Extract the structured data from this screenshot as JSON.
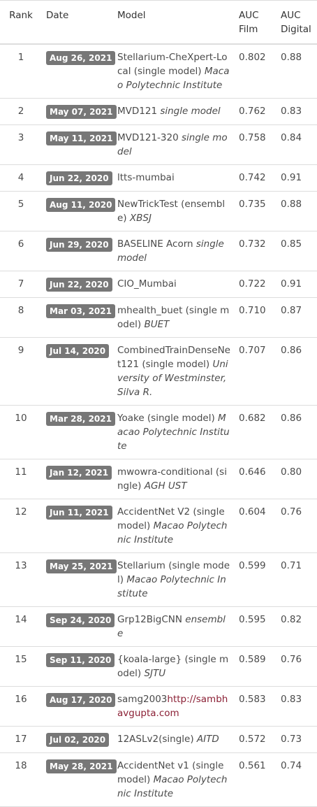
{
  "headers": {
    "rank": "Rank",
    "date": "Date",
    "model": "Model",
    "auc_film": "AUC Film",
    "auc_digital": "AUC Digital"
  },
  "rows": [
    {
      "rank": "1",
      "date": "Aug 26, 2021",
      "model": "Stellarium-CheXpert-Local (single model)",
      "org": "Macao Polytechnic Institute",
      "link": "",
      "film": "0.802",
      "digital": "0.88"
    },
    {
      "rank": "2",
      "date": "May 07, 2021",
      "model": "MVD121",
      "org": "single model",
      "link": "",
      "film": "0.762",
      "digital": "0.83"
    },
    {
      "rank": "3",
      "date": "May 11, 2021",
      "model": "MVD121-320",
      "org": "single model",
      "link": "",
      "film": "0.758",
      "digital": "0.84"
    },
    {
      "rank": "4",
      "date": "Jun 22, 2020",
      "model": "ltts-mumbai",
      "org": "",
      "link": "",
      "film": "0.742",
      "digital": "0.91"
    },
    {
      "rank": "5",
      "date": "Aug 11, 2020",
      "model": "NewTrickTest (ensemble)",
      "org": "XBSJ",
      "link": "",
      "film": "0.735",
      "digital": "0.88"
    },
    {
      "rank": "6",
      "date": "Jun 29, 2020",
      "model": "BASELINE Acorn",
      "org": "single model",
      "link": "",
      "film": "0.732",
      "digital": "0.85"
    },
    {
      "rank": "7",
      "date": "Jun 22, 2020",
      "model": "CIO_Mumbai",
      "org": "",
      "link": "",
      "film": "0.722",
      "digital": "0.91"
    },
    {
      "rank": "8",
      "date": "Mar 03, 2021",
      "model": "mhealth_buet (single model)",
      "org": "BUET",
      "link": "",
      "film": "0.710",
      "digital": "0.87"
    },
    {
      "rank": "9",
      "date": "Jul 14, 2020",
      "model": "CombinedTrainDenseNet121 (single model)",
      "org": "University of Westminster, Silva R.",
      "link": "",
      "film": "0.707",
      "digital": "0.86"
    },
    {
      "rank": "10",
      "date": "Mar 28, 2021",
      "model": "Yoake (single model)",
      "org": "Macao Polytechnic Institute",
      "link": "",
      "film": "0.682",
      "digital": "0.86"
    },
    {
      "rank": "11",
      "date": "Jan 12, 2021",
      "model": "mwowra-conditional (single)",
      "org": "AGH UST",
      "link": "",
      "film": "0.646",
      "digital": "0.80"
    },
    {
      "rank": "12",
      "date": "Jun 11, 2021",
      "model": "AccidentNet V2 (single model)",
      "org": "Macao Polytechnic Institute",
      "link": "",
      "film": "0.604",
      "digital": "0.76"
    },
    {
      "rank": "13",
      "date": "May 25, 2021",
      "model": "Stellarium (single model)",
      "org": "Macao Polytechnic Institute",
      "link": "",
      "film": "0.599",
      "digital": "0.71"
    },
    {
      "rank": "14",
      "date": "Sep 24, 2020",
      "model": "Grp12BigCNN",
      "org": "ensemble",
      "link": "",
      "film": "0.595",
      "digital": "0.82"
    },
    {
      "rank": "15",
      "date": "Sep 11, 2020",
      "model": "{koala-large} (single model)",
      "org": "SJTU",
      "link": "",
      "film": "0.589",
      "digital": "0.76"
    },
    {
      "rank": "16",
      "date": "Aug 17, 2020",
      "model": "samg2003",
      "org": "",
      "link": "http://sambhavgupta.com",
      "film": "0.583",
      "digital": "0.83"
    },
    {
      "rank": "17",
      "date": "Jul 02, 2020",
      "model": "12ASLv2(single)",
      "org": "AITD",
      "link": "",
      "film": "0.572",
      "digital": "0.73"
    },
    {
      "rank": "18",
      "date": "May 28, 2021",
      "model": "AccidentNet v1 (single model)",
      "org": "Macao Polytechnic Institute",
      "link": "",
      "film": "0.561",
      "digital": "0.74"
    }
  ],
  "colors": {
    "badge_bg": "#777777",
    "badge_text": "#ffffff",
    "link": "#8b2035",
    "text": "#4a4a4a",
    "rule": "#dddddd"
  }
}
